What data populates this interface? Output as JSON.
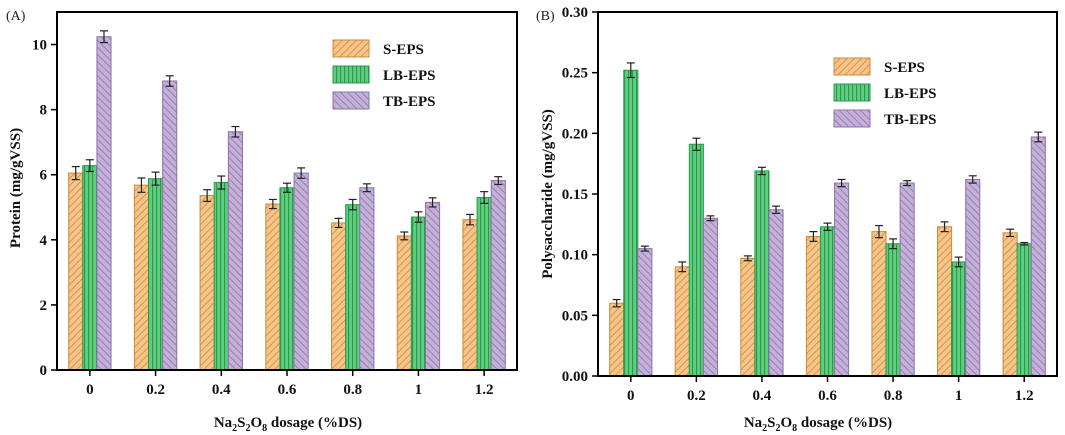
{
  "chart_data": [
    {
      "panel": "(A)",
      "type": "bar",
      "title": "",
      "xlabel": "Na2S2O8 dosage (%DS)",
      "xlabel_parts": {
        "pre": "Na",
        "s1": "2",
        "mid": "S",
        "s2": "2",
        "mid2": "O",
        "s3": "8",
        "post": " dosage (%DS)"
      },
      "ylabel": "Protein (mg/gVSS)",
      "ylim": [
        0,
        11
      ],
      "yticks": [
        0,
        2,
        4,
        6,
        8,
        10
      ],
      "ytick_labels": [
        "0",
        "2",
        "4",
        "6",
        "8",
        "10"
      ],
      "categories": [
        "0",
        "0.2",
        "0.4",
        "0.6",
        "0.8",
        "1",
        "1.2"
      ],
      "legend_position": "top-right",
      "series": [
        {
          "name": "S-EPS",
          "values": [
            6.05,
            5.68,
            5.36,
            5.1,
            4.52,
            4.12,
            4.62
          ],
          "errors": [
            0.2,
            0.22,
            0.18,
            0.14,
            0.14,
            0.12,
            0.16
          ]
        },
        {
          "name": "LB-EPS",
          "values": [
            6.28,
            5.88,
            5.76,
            5.6,
            5.08,
            4.7,
            5.3
          ],
          "errors": [
            0.18,
            0.2,
            0.2,
            0.14,
            0.16,
            0.16,
            0.18
          ]
        },
        {
          "name": "TB-EPS",
          "values": [
            10.24,
            8.88,
            7.32,
            6.05,
            5.6,
            5.15,
            5.82
          ],
          "errors": [
            0.18,
            0.16,
            0.16,
            0.16,
            0.12,
            0.14,
            0.12
          ]
        }
      ]
    },
    {
      "panel": "(B)",
      "type": "bar",
      "title": "",
      "xlabel": "Na2S2O8 dosage (%DS)",
      "xlabel_parts": {
        "pre": "Na",
        "s1": "2",
        "mid": "S",
        "s2": "2",
        "mid2": "O",
        "s3": "8",
        "post": " dosage (%DS)"
      },
      "ylabel": "Polysaccharide (mg/gVSS)",
      "ylim": [
        0,
        0.3
      ],
      "yticks": [
        0,
        0.05,
        0.1,
        0.15,
        0.2,
        0.25,
        0.3
      ],
      "ytick_labels": [
        "0.00",
        "0.05",
        "0.10",
        "0.15",
        "0.20",
        "0.25",
        "0.30"
      ],
      "categories": [
        "0",
        "0.2",
        "0.4",
        "0.6",
        "0.8",
        "1",
        "1.2"
      ],
      "legend_position": "top-center",
      "series": [
        {
          "name": "S-EPS",
          "values": [
            0.06,
            0.09,
            0.097,
            0.115,
            0.119,
            0.123,
            0.118
          ],
          "errors": [
            0.003,
            0.004,
            0.002,
            0.004,
            0.005,
            0.004,
            0.003
          ]
        },
        {
          "name": "LB-EPS",
          "values": [
            0.252,
            0.191,
            0.169,
            0.123,
            0.109,
            0.094,
            0.109
          ],
          "errors": [
            0.006,
            0.005,
            0.003,
            0.003,
            0.004,
            0.004,
            0.001
          ]
        },
        {
          "name": "TB-EPS",
          "values": [
            0.105,
            0.13,
            0.137,
            0.159,
            0.159,
            0.162,
            0.197
          ],
          "errors": [
            0.002,
            0.002,
            0.003,
            0.003,
            0.002,
            0.003,
            0.004
          ]
        }
      ]
    }
  ],
  "style": {
    "series_fills": [
      "#f7c48a",
      "#5fcc80",
      "#c4b0d8"
    ],
    "series_strokes": [
      "#cc8a3a",
      "#2a9a4a",
      "#8a74a8"
    ]
  }
}
